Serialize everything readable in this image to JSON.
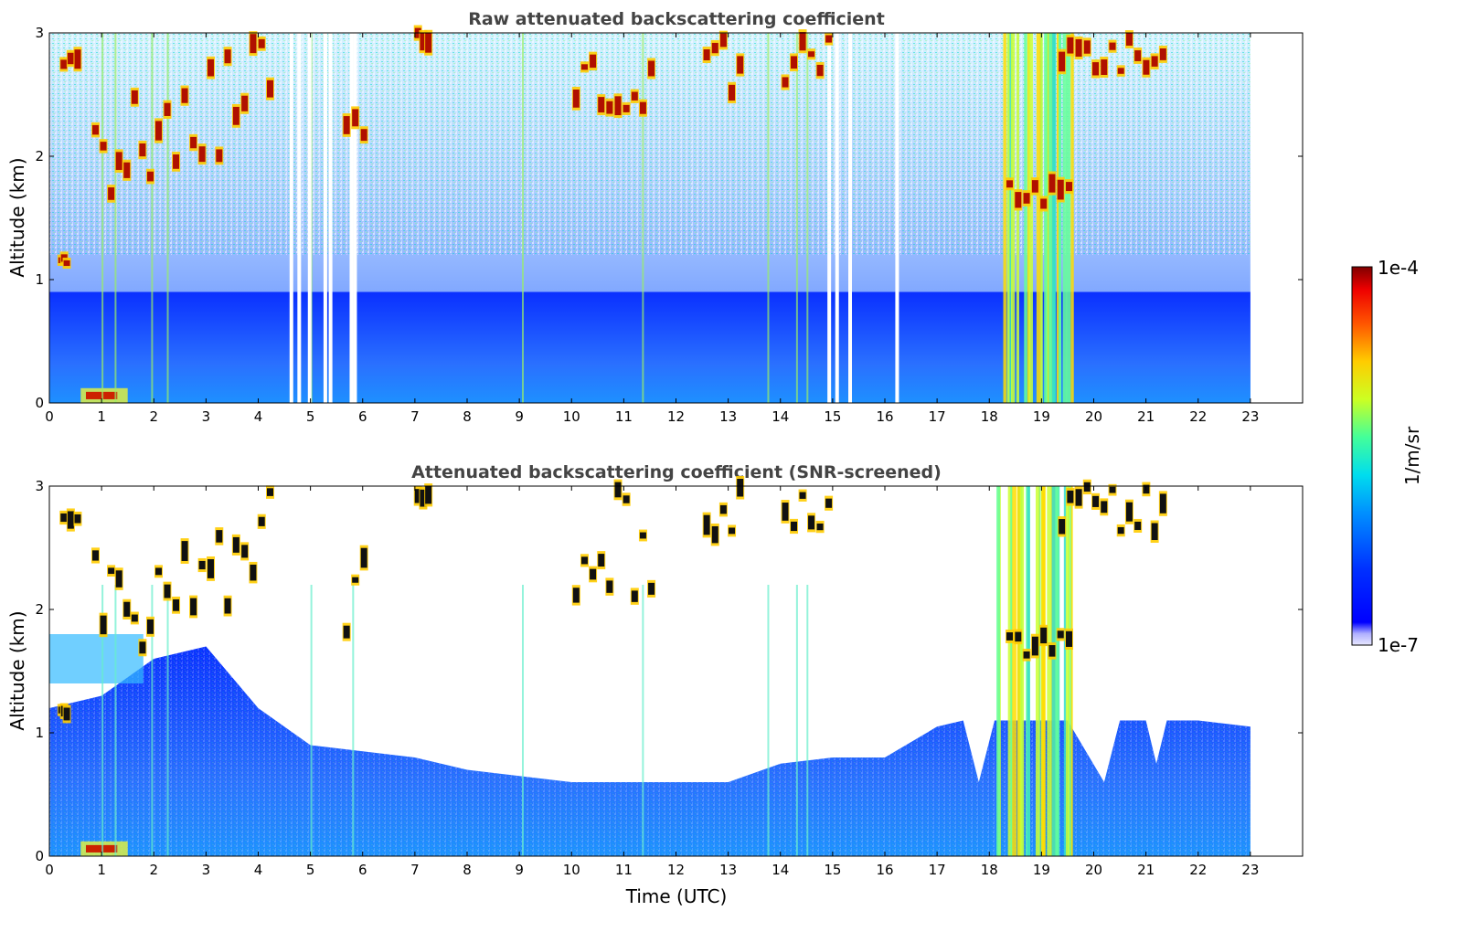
{
  "chart_data": [
    {
      "type": "heatmap",
      "title": "Raw attenuated backscattering coefficient",
      "xlabel": "",
      "ylabel": "Altitude (km)",
      "xlim": [
        0,
        24
      ],
      "ylim": [
        0,
        3
      ],
      "x_ticks": [
        "0",
        "1",
        "2",
        "3",
        "4",
        "5",
        "6",
        "7",
        "8",
        "9",
        "10",
        "11",
        "12",
        "13",
        "14",
        "15",
        "16",
        "17",
        "18",
        "19",
        "20",
        "21",
        "22",
        "23"
      ],
      "y_ticks": [
        "0",
        "1",
        "2",
        "3"
      ],
      "data_end_x": 23,
      "colormap": "jet",
      "features": {
        "boundary_layer_top_km": 0.9,
        "aerosol_top_km": 1.2,
        "cloud_patches": [
          {
            "x": [
              0.2,
              0.6
            ],
            "y": [
              2.7,
              2.85
            ]
          },
          {
            "x": [
              0.2,
              0.35
            ],
            "y": [
              1.1,
              1.2
            ]
          },
          {
            "x": [
              0.8,
              2.0
            ],
            "y": [
              1.5,
              2.5
            ]
          },
          {
            "x": [
              2.0,
              3.0
            ],
            "y": [
              1.9,
              2.5
            ]
          },
          {
            "x": [
              3.0,
              4.3
            ],
            "y": [
              2.0,
              3.0
            ]
          },
          {
            "x": [
              5.6,
              6.1
            ],
            "y": [
              1.7,
              2.5
            ]
          },
          {
            "x": [
              7.0,
              7.3
            ],
            "y": [
              2.9,
              3.0
            ]
          },
          {
            "x": [
              10.0,
              11.6
            ],
            "y": [
              2.1,
              3.0
            ]
          },
          {
            "x": [
              12.5,
              13.3
            ],
            "y": [
              2.5,
              3.0
            ]
          },
          {
            "x": [
              14.0,
              15.0
            ],
            "y": [
              2.5,
              3.0
            ]
          },
          {
            "x": [
              18.3,
              19.6
            ],
            "y": [
              1.6,
              1.8
            ]
          },
          {
            "x": [
              19.3,
              21.4
            ],
            "y": [
              2.6,
              3.0
            ]
          }
        ]
      }
    },
    {
      "type": "heatmap",
      "title": "Attenuated backscattering coefficient (SNR-screened)",
      "xlabel": "Time (UTC)",
      "ylabel": "Altitude (km)",
      "xlim": [
        0,
        24
      ],
      "ylim": [
        0,
        3
      ],
      "x_ticks": [
        "0",
        "1",
        "2",
        "3",
        "4",
        "5",
        "6",
        "7",
        "8",
        "9",
        "10",
        "11",
        "12",
        "13",
        "14",
        "15",
        "16",
        "17",
        "18",
        "19",
        "20",
        "21",
        "22",
        "23"
      ],
      "y_ticks": [
        "0",
        "1",
        "2",
        "3"
      ],
      "data_end_x": 23,
      "colormap": "jet",
      "screened_top_km": [
        {
          "x": 0,
          "y": 1.2
        },
        {
          "x": 1,
          "y": 1.3
        },
        {
          "x": 2,
          "y": 1.6
        },
        {
          "x": 3,
          "y": 1.7
        },
        {
          "x": 4,
          "y": 1.2
        },
        {
          "x": 5,
          "y": 0.9
        },
        {
          "x": 6,
          "y": 0.85
        },
        {
          "x": 7,
          "y": 0.8
        },
        {
          "x": 8,
          "y": 0.7
        },
        {
          "x": 9,
          "y": 0.65
        },
        {
          "x": 10,
          "y": 0.6
        },
        {
          "x": 11,
          "y": 0.6
        },
        {
          "x": 12,
          "y": 0.6
        },
        {
          "x": 13,
          "y": 0.6
        },
        {
          "x": 14,
          "y": 0.75
        },
        {
          "x": 15,
          "y": 0.8
        },
        {
          "x": 16,
          "y": 0.8
        },
        {
          "x": 17,
          "y": 1.05
        },
        {
          "x": 17.5,
          "y": 1.1
        },
        {
          "x": 17.8,
          "y": 0.6
        },
        {
          "x": 18.1,
          "y": 1.1
        },
        {
          "x": 19,
          "y": 1.1
        },
        {
          "x": 19.5,
          "y": 1.1
        },
        {
          "x": 20.2,
          "y": 0.6
        },
        {
          "x": 20.5,
          "y": 1.1
        },
        {
          "x": 21,
          "y": 1.1
        },
        {
          "x": 21.2,
          "y": 0.75
        },
        {
          "x": 21.4,
          "y": 1.1
        },
        {
          "x": 22,
          "y": 1.1
        },
        {
          "x": 23,
          "y": 1.05
        }
      ]
    }
  ],
  "colorbar": {
    "label": "1/m/sr",
    "max_label": "1e-4",
    "min_label": "1e-7",
    "scale": "log",
    "range": [
      1e-07,
      0.0001
    ]
  },
  "colors": {
    "title": "#444444",
    "background_signal": "#2a5cff",
    "near_ground": "#1e90ff",
    "cloud": "#cc1100"
  }
}
